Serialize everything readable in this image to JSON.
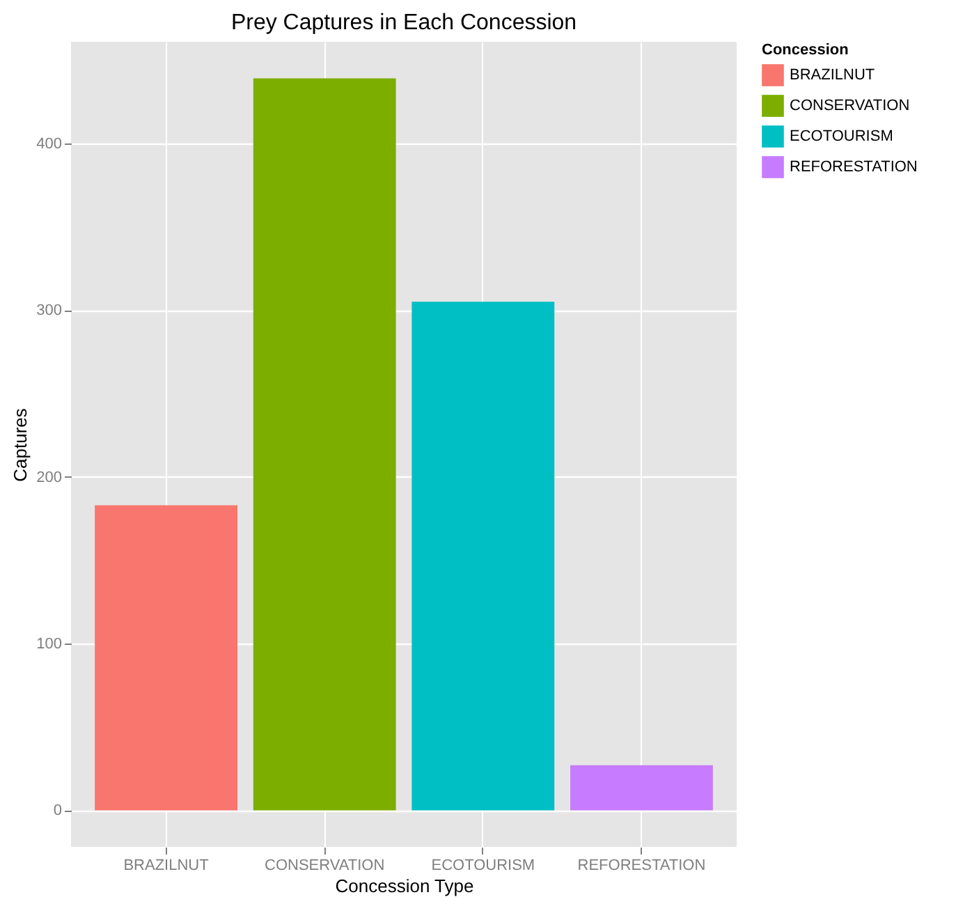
{
  "chart_data": {
    "type": "bar",
    "title": "Prey Captures in Each Concession",
    "xlabel": "Concession Type",
    "ylabel": "Captures",
    "legend_title": "Concession",
    "categories": [
      "BRAZILNUT",
      "CONSERVATION",
      "ECOTOURISM",
      "REFORESTATION"
    ],
    "series": [
      {
        "name": "BRAZILNUT",
        "color": "#f8766d",
        "values": [
          183,
          null,
          null,
          null
        ]
      },
      {
        "name": "CONSERVATION",
        "color": "#7cae00",
        "values": [
          null,
          439,
          null,
          null
        ]
      },
      {
        "name": "ECOTOURISM",
        "color": "#00bfc4",
        "values": [
          null,
          null,
          305,
          null
        ]
      },
      {
        "name": "REFORESTATION",
        "color": "#c77cff",
        "values": [
          null,
          null,
          null,
          27
        ]
      }
    ],
    "ylim": [
      -21.95,
      460.95
    ],
    "yticks": [
      0,
      100,
      200,
      300,
      400
    ],
    "grid": true,
    "legend": "right"
  }
}
